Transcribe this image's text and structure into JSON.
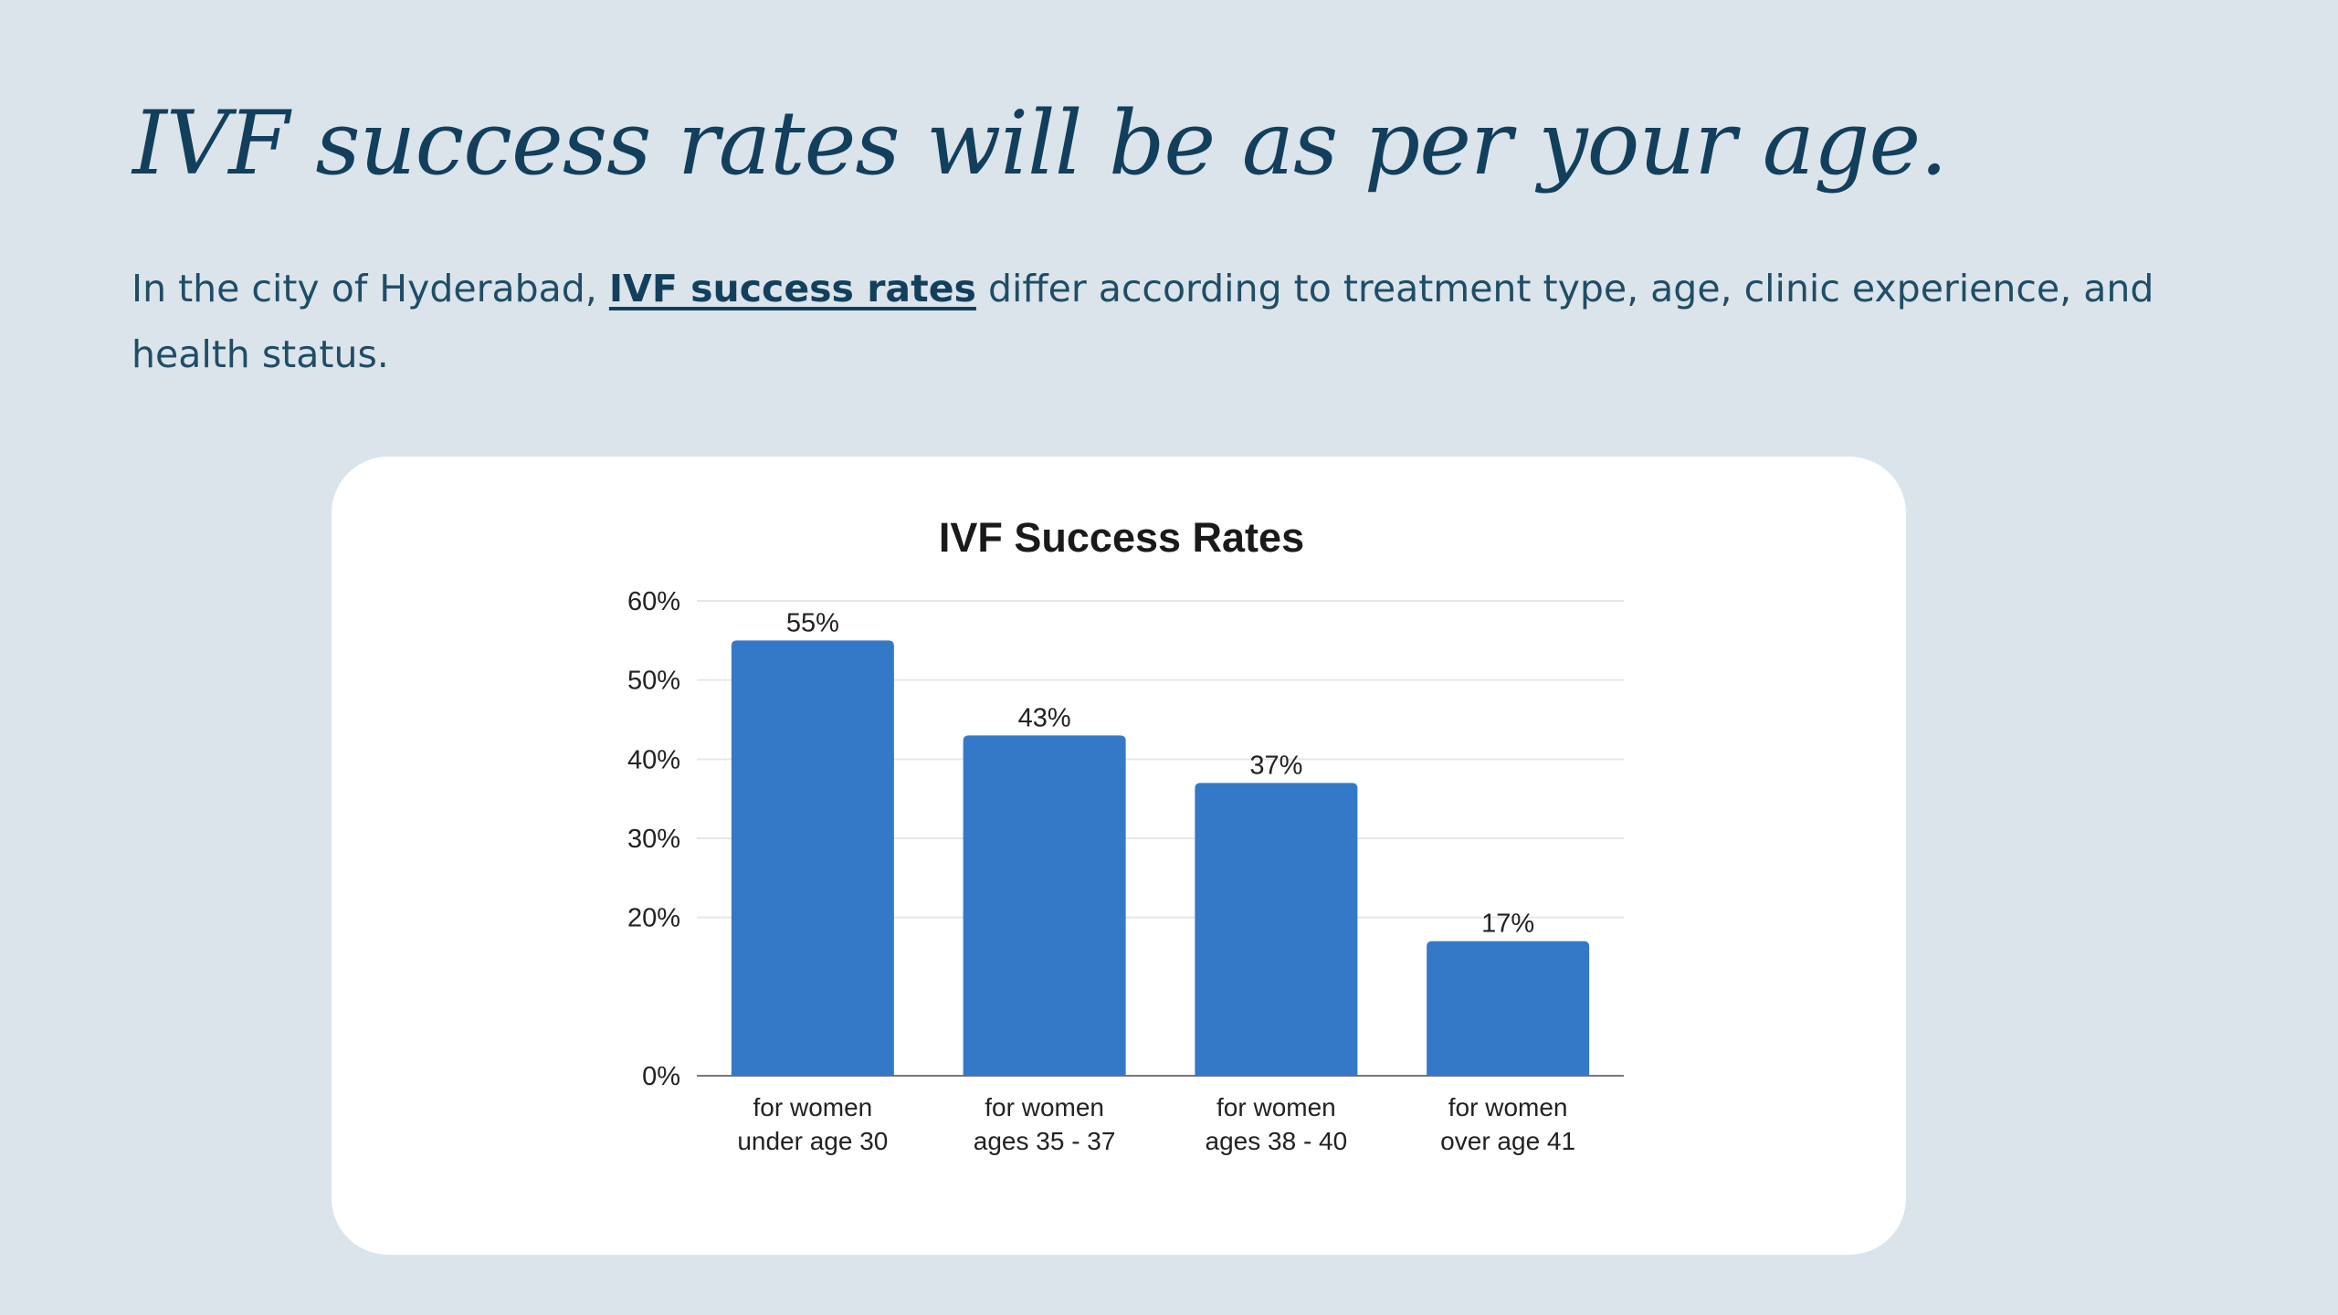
{
  "heading": "IVF success rates will be as per your age.",
  "intro": {
    "before_link": "In the city of Hyderabad, ",
    "link_text": "IVF success rates",
    "after_link": " differ according to treatment type, age, clinic experience, and health status."
  },
  "colors": {
    "background": "#dbe4eb",
    "heading": "#123f5c",
    "bar": "#3479c8",
    "card": "#ffffff"
  },
  "chart_data": {
    "type": "bar",
    "title": "IVF Success Rates",
    "categories": [
      [
        "for women",
        "under age 30"
      ],
      [
        "for women",
        "ages 35 - 37"
      ],
      [
        "for women",
        "ages 38 - 40"
      ],
      [
        "for women",
        "over age 41"
      ]
    ],
    "values": [
      55,
      43,
      37,
      17
    ],
    "data_labels": [
      "55%",
      "43%",
      "37%",
      "17%"
    ],
    "ylim": [
      0,
      60
    ],
    "y_ticks": [
      {
        "value": 0,
        "label": "0%"
      },
      {
        "value": 20,
        "label": "20%"
      },
      {
        "value": 30,
        "label": "30%"
      },
      {
        "value": 40,
        "label": "40%"
      },
      {
        "value": 50,
        "label": "50%"
      },
      {
        "value": 60,
        "label": "60%"
      }
    ],
    "xlabel": "",
    "ylabel": "",
    "grid": true,
    "legend": "none"
  }
}
